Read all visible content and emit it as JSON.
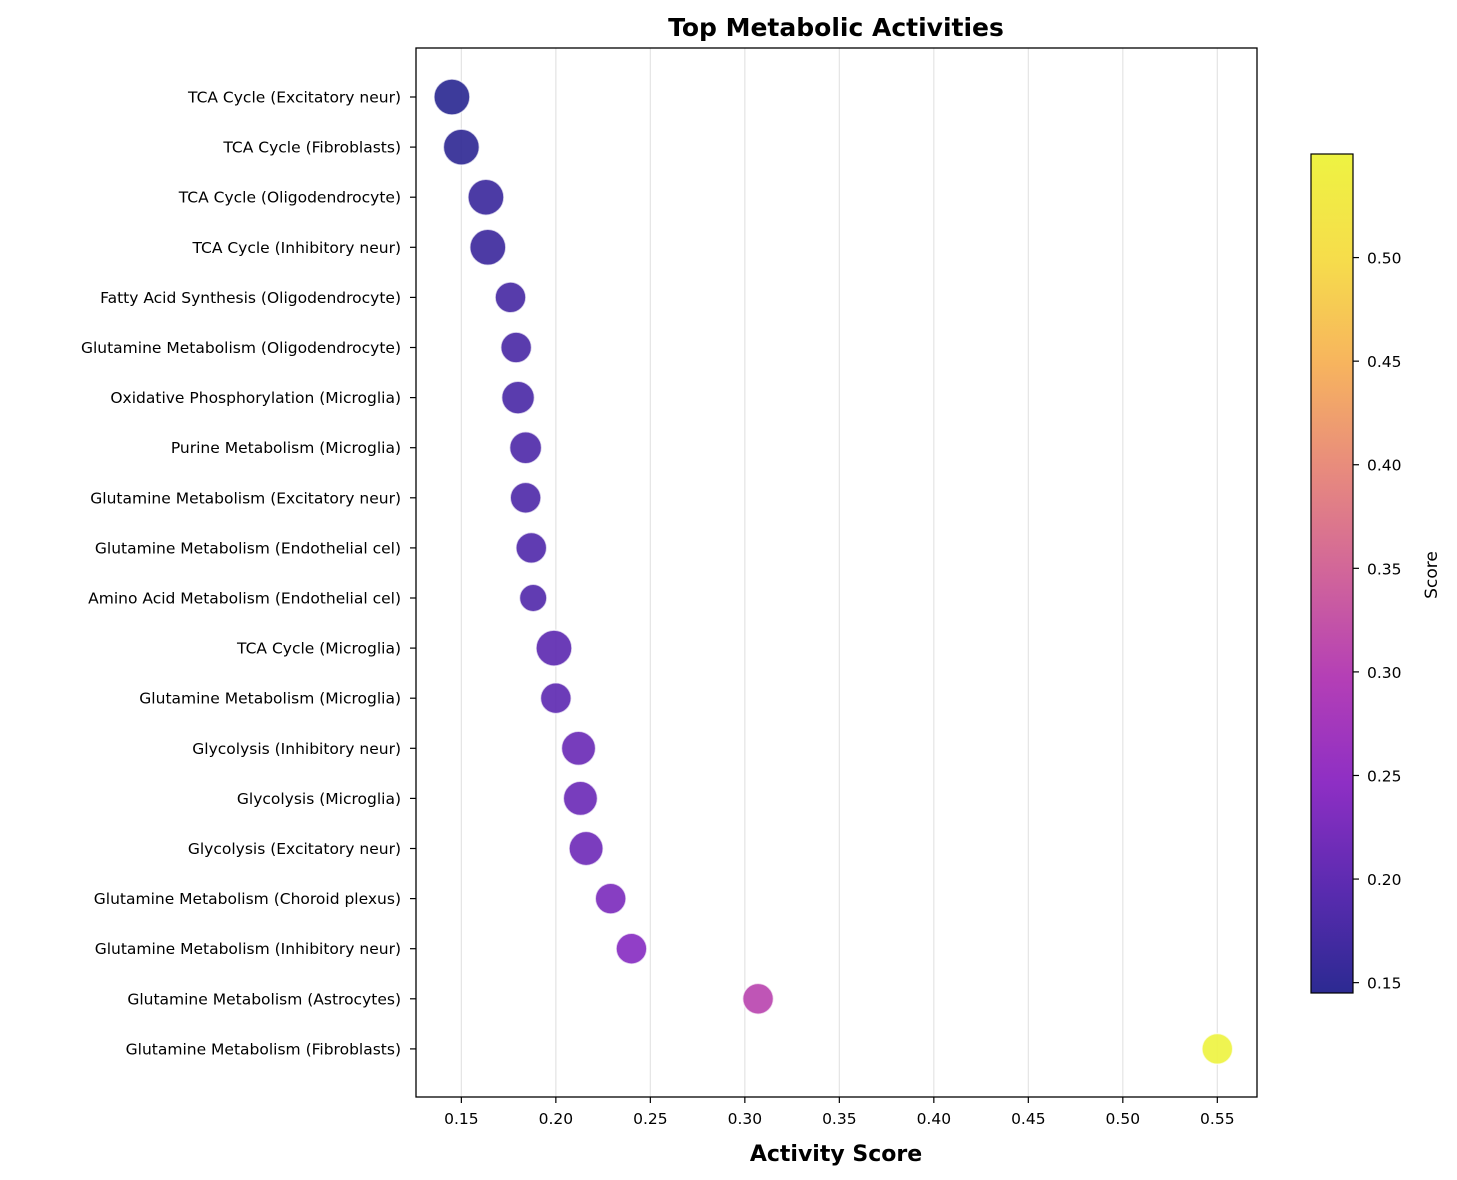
{
  "chart_data": {
    "type": "scatter",
    "title": "Top Metabolic Activities",
    "xlabel": "Activity Score",
    "ylabel": "",
    "xlim": [
      0.126,
      0.571
    ],
    "xticks": [
      0.15,
      0.2,
      0.25,
      0.3,
      0.35,
      0.4,
      0.45,
      0.5,
      0.55
    ],
    "xtick_labels": [
      "0.15",
      "0.20",
      "0.25",
      "0.30",
      "0.35",
      "0.40",
      "0.45",
      "0.50",
      "0.55"
    ],
    "grid": "vertical",
    "colormap": "plasma",
    "colorbar": {
      "label": "Score",
      "range": [
        0.145,
        0.55
      ],
      "ticks": [
        0.15,
        0.2,
        0.25,
        0.3,
        0.35,
        0.4,
        0.45,
        0.5
      ],
      "tick_labels": [
        "0.15",
        "0.20",
        "0.25",
        "0.30",
        "0.35",
        "0.40",
        "0.45",
        "0.50"
      ],
      "colors": [
        "#2c2a92",
        "#5b2bb0",
        "#8e2fc4",
        "#b43fb6",
        "#d1659a",
        "#e88b7d",
        "#f7b45e",
        "#f6dd4b",
        "#eef342"
      ]
    },
    "points": [
      {
        "label": "TCA Cycle (Excitatory neur)",
        "x": 0.145,
        "size": 3
      },
      {
        "label": "TCA Cycle (Fibroblasts)",
        "x": 0.15,
        "size": 3
      },
      {
        "label": "TCA Cycle (Oligodendrocyte)",
        "x": 0.163,
        "size": 3
      },
      {
        "label": "TCA Cycle (Inhibitory neur)",
        "x": 0.164,
        "size": 3
      },
      {
        "label": "Fatty Acid Synthesis (Oligodendrocyte)",
        "x": 0.176,
        "size": 1.5
      },
      {
        "label": "Glutamine Metabolism (Oligodendrocyte)",
        "x": 0.179,
        "size": 1.5
      },
      {
        "label": "Oxidative Phosphorylation (Microglia)",
        "x": 0.18,
        "size": 2
      },
      {
        "label": "Purine Metabolism (Microglia)",
        "x": 0.184,
        "size": 1.8
      },
      {
        "label": "Glutamine Metabolism (Excitatory neur)",
        "x": 0.184,
        "size": 1.5
      },
      {
        "label": "Glutamine Metabolism (Endothelial cel)",
        "x": 0.187,
        "size": 1.5
      },
      {
        "label": "Amino Acid Metabolism (Endothelial cel)",
        "x": 0.188,
        "size": 0.8
      },
      {
        "label": "TCA Cycle (Microglia)",
        "x": 0.199,
        "size": 3
      },
      {
        "label": "Glutamine Metabolism (Microglia)",
        "x": 0.2,
        "size": 1.5
      },
      {
        "label": "Glycolysis (Inhibitory neur)",
        "x": 0.212,
        "size": 2.4
      },
      {
        "label": "Glycolysis (Microglia)",
        "x": 0.213,
        "size": 2.4
      },
      {
        "label": "Glycolysis (Excitatory neur)",
        "x": 0.216,
        "size": 2.4
      },
      {
        "label": "Glutamine Metabolism (Choroid plexus)",
        "x": 0.229,
        "size": 1.5
      },
      {
        "label": "Glutamine Metabolism (Inhibitory neur)",
        "x": 0.24,
        "size": 1.5
      },
      {
        "label": "Glutamine Metabolism (Astrocytes)",
        "x": 0.307,
        "size": 1.5
      },
      {
        "label": "Glutamine Metabolism (Fibroblasts)",
        "x": 0.55,
        "size": 1.5
      }
    ]
  }
}
